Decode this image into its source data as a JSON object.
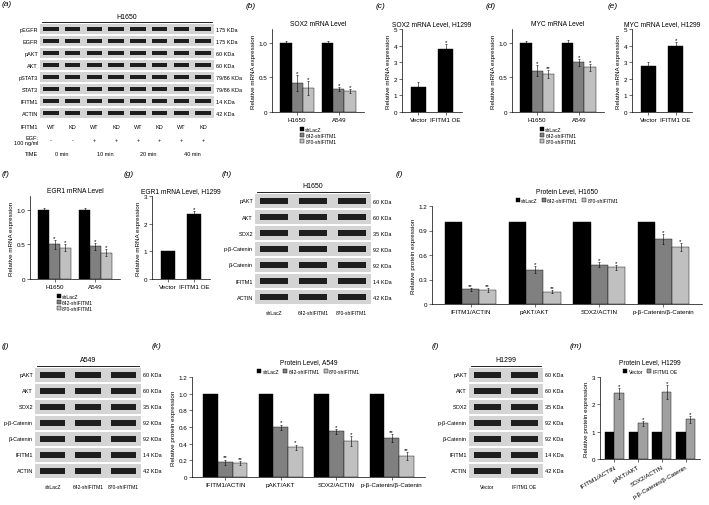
{
  "chart_data": [
    {
      "panel": "(b)",
      "type": "bar",
      "title": "SOX2 mRNA Level",
      "ylabel": "Relative mRNA expression",
      "categories": [
        "H1650",
        "A549"
      ],
      "ylim": [
        0,
        1.2
      ],
      "yticks": [
        0,
        0.5,
        1.0
      ],
      "legend": "bottom",
      "series": [
        {
          "name": "shLacZ",
          "color": "#000000",
          "values": [
            1.0,
            1.0
          ],
          "errors": [
            0.03,
            0.03
          ]
        },
        {
          "name": "642-shIFITM1",
          "color": "#808080",
          "values": [
            0.42,
            0.33
          ],
          "errors": [
            0.12,
            0.03
          ],
          "significance": [
            "*",
            "*"
          ]
        },
        {
          "name": "870-shIFITM1",
          "color": "#c0c0c0",
          "values": [
            0.35,
            0.3
          ],
          "errors": [
            0.1,
            0.03
          ],
          "significance": [
            "*",
            "*"
          ]
        }
      ]
    },
    {
      "panel": "(c)",
      "type": "bar",
      "title": "SOX2 mRNA Level, H1299",
      "ylabel": "Relative mRNA expression",
      "categories": [
        "Vector",
        "IFITM1 OE"
      ],
      "ylim": [
        0,
        5
      ],
      "yticks": [
        0,
        1,
        2,
        3,
        4,
        5
      ],
      "color": "#000000",
      "values": [
        1.5,
        3.8
      ],
      "errors": [
        0.3,
        0.3
      ],
      "significance": [
        null,
        "*"
      ]
    },
    {
      "panel": "(d)",
      "type": "bar",
      "title": "MYC mRNA Level",
      "ylabel": "Relative mRNA expression",
      "categories": [
        "H1650",
        "A549"
      ],
      "ylim": [
        0,
        1.2
      ],
      "yticks": [
        0,
        0.5,
        1.0
      ],
      "legend": "bottom",
      "series": [
        {
          "name": "shLacZ",
          "color": "#000000",
          "values": [
            1.0,
            1.0
          ],
          "errors": [
            0.03,
            0.04
          ]
        },
        {
          "name": "642-shIFITM1",
          "color": "#808080",
          "values": [
            0.6,
            0.72
          ],
          "errors": [
            0.08,
            0.05
          ],
          "significance": [
            "*",
            "*"
          ]
        },
        {
          "name": "870-shIFITM1",
          "color": "#c0c0c0",
          "values": [
            0.55,
            0.65
          ],
          "errors": [
            0.06,
            0.05
          ],
          "significance": [
            "**",
            "*"
          ]
        }
      ]
    },
    {
      "panel": "(e)",
      "type": "bar",
      "title": "MYC mRNA Level, H1299",
      "ylabel": "Relative mRNA expression",
      "categories": [
        "Vector",
        "IFITM1 OE"
      ],
      "ylim": [
        0,
        5
      ],
      "yticks": [
        0,
        1,
        2,
        3,
        4,
        5
      ],
      "color": "#000000",
      "values": [
        2.8,
        4.0
      ],
      "errors": [
        0.2,
        0.2
      ],
      "significance": [
        null,
        "*"
      ]
    },
    {
      "panel": "(f)",
      "type": "bar",
      "title": "EGR1 mRNA Level",
      "ylabel": "Relative mRNA expression",
      "categories": [
        "H1650",
        "A549"
      ],
      "ylim": [
        0,
        1.2
      ],
      "yticks": [
        0,
        0.5,
        1.0
      ],
      "legend": "bottom",
      "series": [
        {
          "name": "shLacZ",
          "color": "#000000",
          "values": [
            1.0,
            1.0
          ],
          "errors": [
            0.03,
            0.03
          ]
        },
        {
          "name": "642-shIFITM1",
          "color": "#808080",
          "values": [
            0.5,
            0.47
          ],
          "errors": [
            0.06,
            0.05
          ],
          "significance": [
            "*",
            "*"
          ]
        },
        {
          "name": "870-shIFITM1",
          "color": "#c0c0c0",
          "values": [
            0.45,
            0.38
          ],
          "errors": [
            0.05,
            0.05
          ],
          "significance": [
            "*",
            "*"
          ]
        }
      ]
    },
    {
      "panel": "(g)",
      "type": "bar",
      "title": "EGR1 mRNA Level, H1299",
      "ylabel": "Relative mRNA expression",
      "categories": [
        "Vector",
        "IFITM1 OE"
      ],
      "ylim": [
        0,
        3
      ],
      "yticks": [
        0,
        1,
        2,
        3
      ],
      "color": "#000000",
      "values": [
        1.0,
        2.35
      ],
      "errors": [
        0.02,
        0.12
      ],
      "significance": [
        null,
        "*"
      ]
    },
    {
      "panel": "(i)",
      "type": "bar",
      "title": "Protein Level, H1650",
      "ylabel": "Relative protein expression",
      "categories": [
        "IFITM1/ACTIN",
        "pAKT/AKT",
        "SOX2/ACTIN",
        "p-β-Catenin/β-Catenin"
      ],
      "ylim": [
        0,
        1.2
      ],
      "yticks": [
        0,
        0.3,
        0.6,
        0.9,
        1.2
      ],
      "legend": "top",
      "series": [
        {
          "name": "shLacZ",
          "color": "#000000",
          "values": [
            1,
            1,
            1,
            1
          ]
        },
        {
          "name": "642-shIFITM1",
          "color": "#808080",
          "values": [
            0.18,
            0.42,
            0.48,
            0.8
          ],
          "errors": [
            0.02,
            0.04,
            0.03,
            0.06
          ],
          "significance": [
            "**",
            "*",
            "*",
            "*"
          ]
        },
        {
          "name": "870-shIFITM1",
          "color": "#c0c0c0",
          "values": [
            0.17,
            0.15,
            0.45,
            0.7
          ],
          "errors": [
            0.02,
            0.02,
            0.03,
            0.05
          ],
          "significance": [
            "**",
            "**",
            "*",
            "*"
          ]
        }
      ]
    },
    {
      "panel": "(k)",
      "type": "bar",
      "title": "Protein Level, A549",
      "ylabel": "Relative protein expression",
      "categories": [
        "IFITM1/ACTIN",
        "pAKT/AKT",
        "SOX2/ACTIN",
        "p-β-Catenin/β-Catenin"
      ],
      "ylim": [
        0,
        1.2
      ],
      "yticks": [
        0,
        0.2,
        0.4,
        0.6,
        0.8,
        1.0,
        1.2
      ],
      "legend": "top",
      "series": [
        {
          "name": "shLacZ",
          "color": "#000000",
          "values": [
            1,
            1,
            1,
            1
          ]
        },
        {
          "name": "642-shIFITM1",
          "color": "#808080",
          "values": [
            0.18,
            0.6,
            0.55,
            0.47
          ],
          "errors": [
            0.03,
            0.03,
            0.03,
            0.05
          ],
          "significance": [
            "**",
            "*",
            "*",
            "**"
          ]
        },
        {
          "name": "870-shIFITM1",
          "color": "#c0c0c0",
          "values": [
            0.17,
            0.36,
            0.43,
            0.25
          ],
          "errors": [
            0.02,
            0.03,
            0.06,
            0.05
          ],
          "significance": [
            "**",
            "*",
            "*",
            "**"
          ]
        }
      ]
    },
    {
      "panel": "(m)",
      "type": "bar",
      "title": "Protein Level, H1299",
      "ylabel": "Relative protein expression",
      "categories": [
        "IFITM1/ACTIN",
        "pAKT/AKT",
        "SOX2/ACTIN",
        "p-β-Catenin/β-Catenin"
      ],
      "ylim": [
        0,
        3
      ],
      "yticks": [
        0,
        1,
        2,
        3
      ],
      "legend": "top",
      "series": [
        {
          "name": "Vector",
          "color": "#000000",
          "values": [
            1,
            1,
            1,
            1
          ]
        },
        {
          "name": "IFITM1 OE",
          "color": "#a0a0a0",
          "values": [
            2.4,
            1.3,
            2.45,
            1.45
          ],
          "errors": [
            0.2,
            0.08,
            0.25,
            0.12
          ],
          "significance": [
            "*",
            "*",
            "*",
            "*"
          ]
        }
      ]
    }
  ],
  "blots": [
    {
      "panel": "(a)",
      "title": "H1650",
      "rows": [
        {
          "protein": "pEGFR",
          "size": "175 KDa"
        },
        {
          "protein": "EGFR",
          "size": "175 KDa"
        },
        {
          "protein": "pAKT",
          "size": "60 KDa"
        },
        {
          "protein": "AKT",
          "size": "60 KDa"
        },
        {
          "protein": "pSTAT3",
          "size": "79/86 KDa"
        },
        {
          "protein": "STAT3",
          "size": "79/86 KDa"
        },
        {
          "protein": "IFITM1",
          "size": "14 KDa"
        },
        {
          "protein": "ACTIN",
          "size": "42 KDa"
        }
      ],
      "lane_rows": [
        {
          "label": "IFITM1",
          "values": [
            "WT",
            "KD",
            "WT",
            "KD",
            "WT",
            "KD",
            "WT",
            "KD"
          ]
        },
        {
          "label": "EGF:\n100 ng/ml",
          "values": [
            "-",
            "-",
            "+",
            "+",
            "+",
            "+",
            "+",
            "+"
          ]
        },
        {
          "label": "TIME",
          "groups": [
            "0 min",
            "10 min",
            "20 min",
            "40 min"
          ]
        }
      ]
    },
    {
      "panel": "(h)",
      "title": "H1650",
      "rows": [
        {
          "protein": "pAKT",
          "size": "60 KDa"
        },
        {
          "protein": "AKT",
          "size": "60 KDa"
        },
        {
          "protein": "SOX2",
          "size": "35 KDa"
        },
        {
          "protein": "p-β-Catenin",
          "size": "92 KDa"
        },
        {
          "protein": "β-Catenin",
          "size": "92 KDa"
        },
        {
          "protein": "IFITM1",
          "size": "14 KDa"
        },
        {
          "protein": "ACTIN",
          "size": "42 KDa"
        }
      ],
      "lane_rows": [
        {
          "values": [
            "shLacZ",
            "642-shIFITM1",
            "870-shIFITM1"
          ]
        }
      ]
    },
    {
      "panel": "(j)",
      "title": "A549",
      "rows": [
        {
          "protein": "pAKT",
          "size": "60 KDa"
        },
        {
          "protein": "AKT",
          "size": "60 KDa"
        },
        {
          "protein": "SOX2",
          "size": "35 KDa"
        },
        {
          "protein": "p-β-Catenin",
          "size": "92 KDa"
        },
        {
          "protein": "β-Catenin",
          "size": "92 KDa"
        },
        {
          "protein": "IFITM1",
          "size": "14 KDa"
        },
        {
          "protein": "ACTIN",
          "size": "42 KDa"
        }
      ],
      "lane_rows": [
        {
          "values": [
            "shLacZ",
            "642-shIFITM1",
            "870-shIFITM1"
          ]
        }
      ]
    },
    {
      "panel": "(l)",
      "title": "H1299",
      "rows": [
        {
          "protein": "pAKT",
          "size": "60 KDa"
        },
        {
          "protein": "AKT",
          "size": "60 KDa"
        },
        {
          "protein": "SOX2",
          "size": "35 KDa"
        },
        {
          "protein": "p-β-Catenin",
          "size": "92 KDa"
        },
        {
          "protein": "β-Catenin",
          "size": "92 KDa"
        },
        {
          "protein": "IFITM1",
          "size": "14 KDa"
        },
        {
          "protein": "ACTIN",
          "size": "42 KDa"
        }
      ],
      "lane_rows": [
        {
          "values": [
            "Vector",
            "IFITM1 OE"
          ]
        }
      ]
    }
  ]
}
